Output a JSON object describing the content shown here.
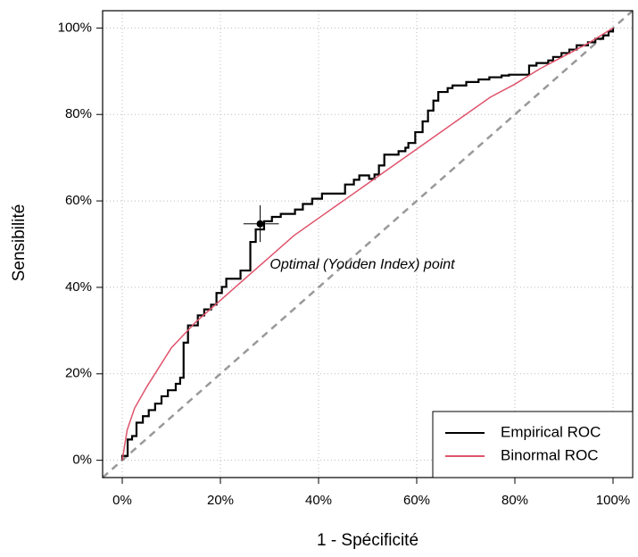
{
  "chart_data": {
    "type": "roc",
    "x_label": "1 - Spécificité",
    "y_label": "Sensibilité",
    "xlim": [
      -4,
      104
    ],
    "ylim": [
      -4,
      104
    ],
    "xticks": [
      {
        "value": 0,
        "label": "0%"
      },
      {
        "value": 20,
        "label": "20%"
      },
      {
        "value": 40,
        "label": "40%"
      },
      {
        "value": 60,
        "label": "60%"
      },
      {
        "value": 80,
        "label": "80%"
      },
      {
        "value": 100,
        "label": "100%"
      }
    ],
    "yticks": [
      {
        "value": 0,
        "label": "0%"
      },
      {
        "value": 20,
        "label": "20%"
      },
      {
        "value": 40,
        "label": "40%"
      },
      {
        "value": 60,
        "label": "60%"
      },
      {
        "value": 80,
        "label": "80%"
      },
      {
        "value": 100,
        "label": "100%"
      }
    ],
    "grid": true,
    "legend": "bottom-right",
    "series": [
      {
        "name": "Empirical ROC",
        "color": "#000000",
        "x": [
          0,
          0,
          1.1,
          1.1,
          2,
          2,
          2.9,
          2.9,
          4.2,
          4.2,
          5.4,
          5.4,
          6.7,
          6.7,
          8,
          8,
          9.3,
          9.3,
          10.9,
          10.9,
          11.8,
          11.8,
          12.5,
          12.5,
          13.4,
          13.4,
          15.4,
          15.4,
          16.7,
          16.7,
          18.1,
          18.1,
          19.2,
          19.2,
          20.3,
          20.3,
          21.2,
          21.2,
          24.1,
          24.1,
          26.1,
          26.1,
          27.2,
          27.2,
          28.9,
          28.9,
          30.5,
          30.5,
          32.3,
          32.3,
          35.2,
          35.2,
          36.8,
          36.8,
          38.7,
          38.7,
          40.7,
          40.7,
          45.4,
          45.4,
          47.2,
          47.2,
          48.3,
          48.3,
          50.3,
          50.3,
          51.4,
          51.4,
          52.3,
          52.3,
          53.4,
          53.4,
          56.3,
          56.3,
          57.7,
          57.7,
          58.3,
          58.3,
          59.7,
          59.7,
          61.2,
          61.2,
          62.3,
          62.3,
          63.4,
          63.4,
          64.4,
          64.4,
          66.3,
          66.3,
          67.3,
          67.3,
          70.1,
          70.1,
          72.6,
          72.6,
          74.8,
          74.8,
          77.3,
          77.3,
          78.8,
          78.8,
          82.9,
          82.9,
          84.4,
          84.4,
          86.8,
          86.8,
          87.8,
          87.8,
          89.5,
          89.5,
          91.1,
          91.1,
          92.6,
          92.6,
          94.9,
          94.9,
          96.4,
          96.4,
          98,
          98,
          99.1,
          99.1,
          100,
          100
        ],
        "values": [
          0,
          1,
          1,
          4.8,
          4.8,
          5.6,
          5.6,
          8.7,
          8.7,
          10.2,
          10.2,
          11.6,
          11.6,
          13.1,
          13.1,
          14.8,
          14.8,
          16.2,
          16.2,
          17.7,
          17.7,
          19.1,
          19.1,
          27.2,
          27.2,
          31.2,
          31.2,
          33.5,
          33.5,
          34.9,
          34.9,
          36,
          36,
          38.7,
          38.7,
          40.1,
          40.1,
          42,
          42,
          43.9,
          43.9,
          50.5,
          50.5,
          53.4,
          53.4,
          55.3,
          55.3,
          56.3,
          56.3,
          57,
          57,
          58,
          58,
          59.3,
          59.3,
          60.5,
          60.5,
          61.7,
          61.7,
          63.8,
          63.8,
          64.9,
          64.9,
          65.9,
          65.9,
          65.1,
          65.1,
          66.1,
          66.1,
          68.2,
          68.2,
          70.7,
          70.7,
          71.5,
          71.5,
          72.3,
          72.3,
          73.4,
          73.4,
          75.9,
          75.9,
          78.4,
          78.4,
          80.9,
          80.9,
          83.2,
          83.2,
          85.2,
          85.2,
          86.1,
          86.1,
          86.7,
          86.7,
          87.5,
          87.5,
          88.1,
          88.1,
          88.6,
          88.6,
          89,
          89,
          89.2,
          89.2,
          91.3,
          91.3,
          91.9,
          91.9,
          92.5,
          92.5,
          93.3,
          93.3,
          94.2,
          94.2,
          95,
          95,
          96,
          96,
          96.7,
          96.7,
          97.5,
          97.5,
          98.3,
          98.3,
          99.2,
          99.2,
          100
        ]
      },
      {
        "name": "Binormal ROC",
        "color": "#df536b",
        "x": [
          0,
          1,
          2.5,
          5,
          10,
          15,
          20,
          25,
          30,
          35,
          40,
          45,
          50,
          55,
          60,
          65,
          70,
          75,
          80,
          85,
          90,
          95,
          100
        ],
        "values": [
          0,
          7,
          12,
          17,
          26,
          32,
          37,
          42,
          47,
          52,
          56,
          60,
          64,
          68,
          72,
          76,
          80,
          84,
          87,
          90.5,
          93.5,
          96.5,
          100
        ]
      }
    ],
    "optimal_point": {
      "label": "Optimal (Youden Index) point",
      "x": 28.1,
      "y": 54.7,
      "x_ci": [
        24.7,
        31.9
      ],
      "y_ci": [
        50.5,
        59
      ]
    }
  }
}
